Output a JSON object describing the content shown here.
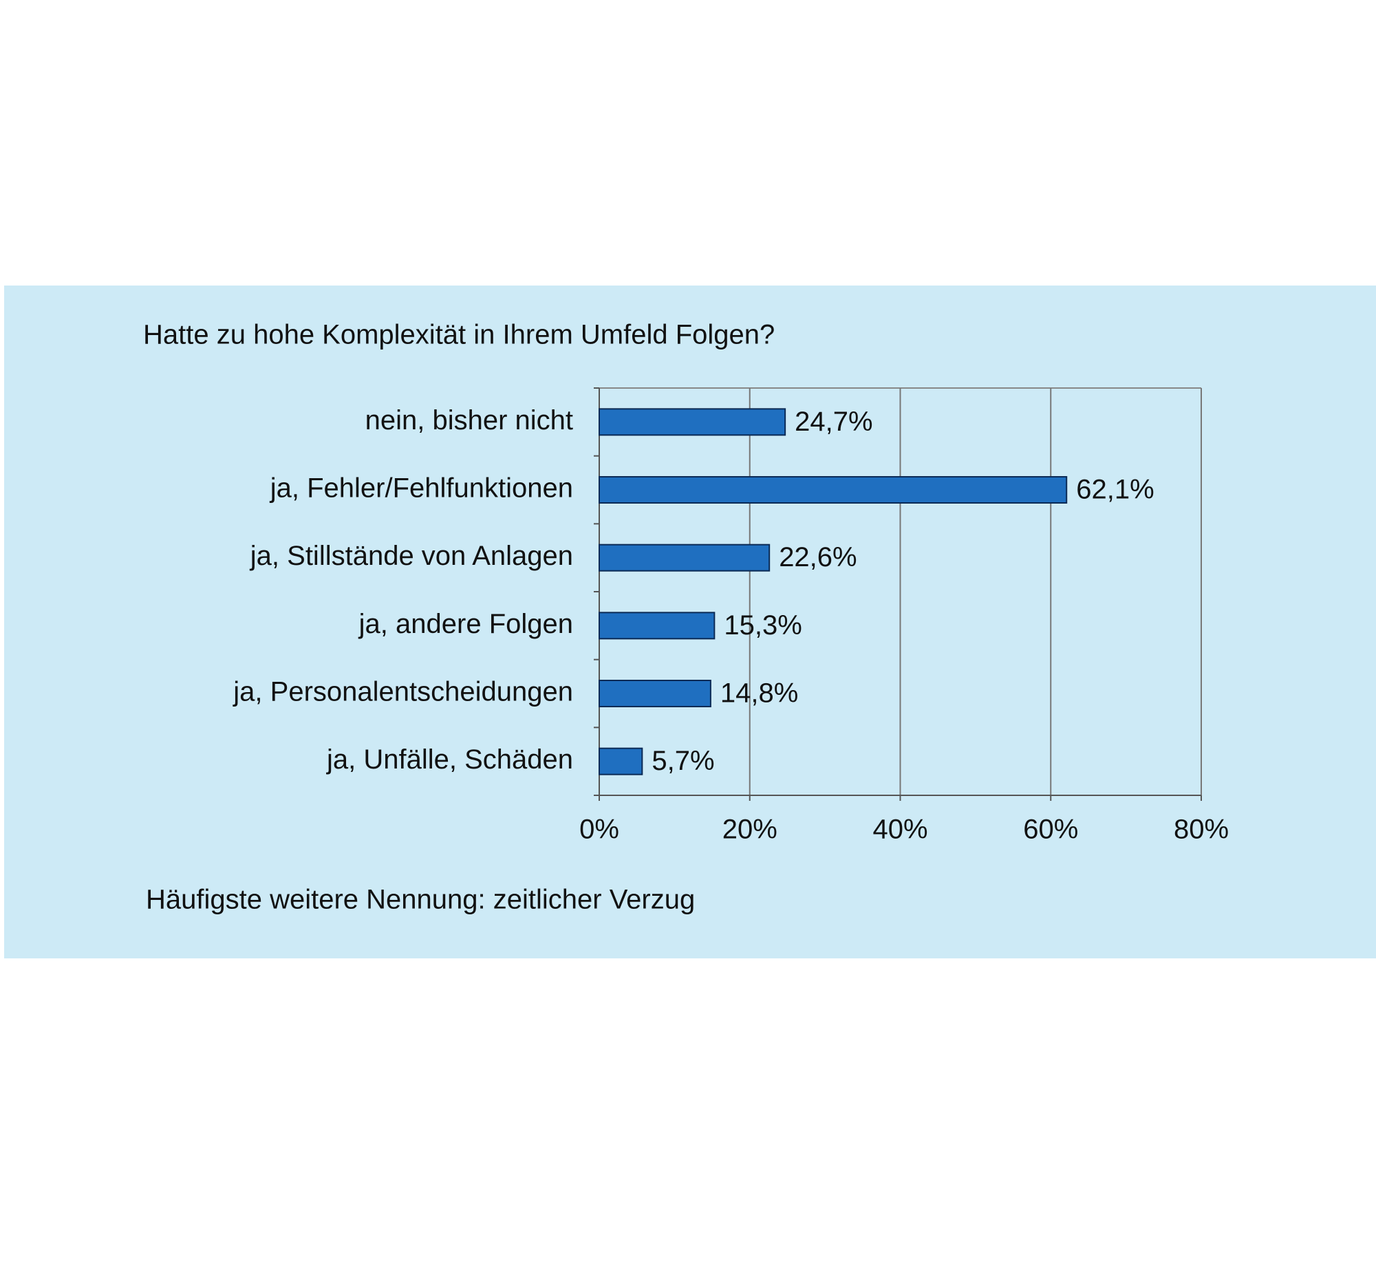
{
  "chart_data": {
    "type": "bar",
    "orientation": "horizontal",
    "title": "Hatte zu hohe Komplexität in Ihrem Umfeld Folgen?",
    "categories": [
      "nein, bisher nicht",
      "ja, Fehler/Fehlfunktionen",
      "ja, Stillstände von Anlagen",
      "ja, andere Folgen",
      "ja, Personalentscheidungen",
      "ja, Unfälle, Schäden"
    ],
    "values": [
      24.7,
      62.1,
      22.6,
      15.3,
      14.8,
      5.7
    ],
    "value_labels": [
      "24,7%",
      "62,1%",
      "22,6%",
      "15,3%",
      "14,8%",
      "5,7%"
    ],
    "color": "#1f6fc0",
    "xlim": [
      0,
      80
    ],
    "xticks": [
      {
        "value": 0,
        "label": "0%"
      },
      {
        "value": 20,
        "label": "20%"
      },
      {
        "value": 40,
        "label": "40%"
      },
      {
        "value": 60,
        "label": "60%"
      },
      {
        "value": 80,
        "label": "80%"
      }
    ],
    "grid": true,
    "note": "Häufigste weitere Nennung: zeitlicher Verzug"
  }
}
